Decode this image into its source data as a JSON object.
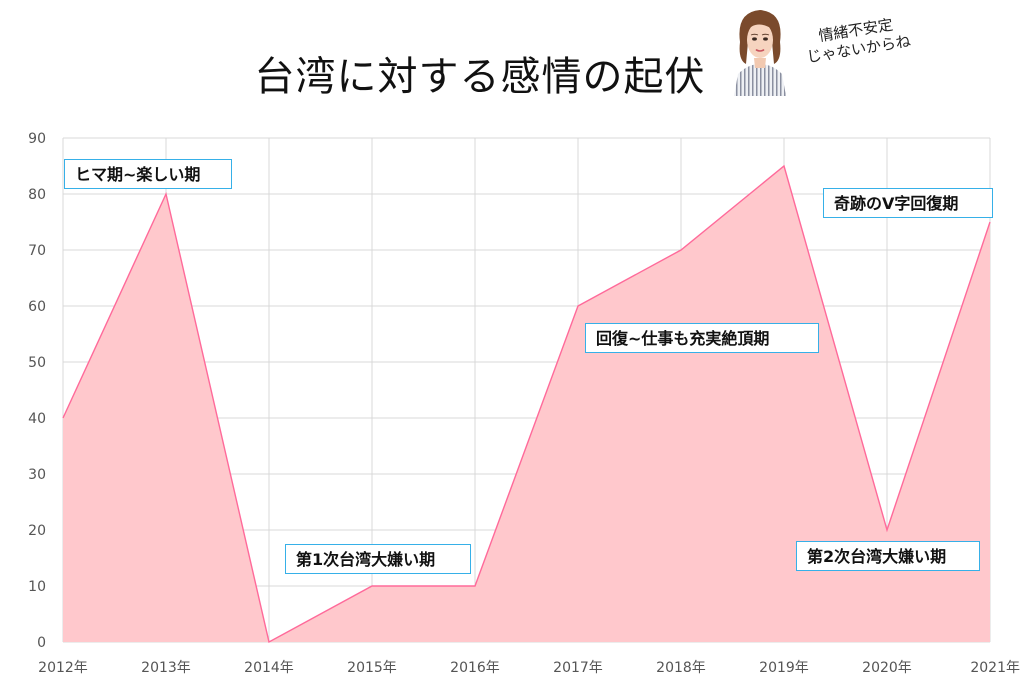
{
  "header": {
    "title": "台湾に対する感情の起伏",
    "tagline_line1": "情緒不安定",
    "tagline_line2": "じゃないからね"
  },
  "colors": {
    "line": "#ff6a9a",
    "fill": "#ffc8cc",
    "grid": "#d9d9d9",
    "axis_text": "#555555",
    "annotation_border": "#36b0e8"
  },
  "chart_data": {
    "type": "area",
    "title": "台湾に対する感情の起伏",
    "xlabel": "",
    "ylabel": "",
    "x": [
      "2012年",
      "2013年",
      "2014年",
      "2015年",
      "2016年",
      "2017年",
      "2018年",
      "2019年",
      "2020年",
      "2021年"
    ],
    "values": [
      40,
      80,
      0,
      10,
      10,
      60,
      70,
      85,
      20,
      75
    ],
    "ylim": [
      0,
      90
    ],
    "yticks": [
      0,
      10,
      20,
      30,
      40,
      50,
      60,
      70,
      80,
      90
    ],
    "grid": true,
    "legend": "none",
    "annotations": [
      {
        "text": "ヒマ期~楽しい期"
      },
      {
        "text": "第1次台湾大嫌い期"
      },
      {
        "text": "回復~仕事も充実絶頂期"
      },
      {
        "text": "奇跡のV字回復期"
      },
      {
        "text": "第2次台湾大嫌い期"
      }
    ]
  }
}
